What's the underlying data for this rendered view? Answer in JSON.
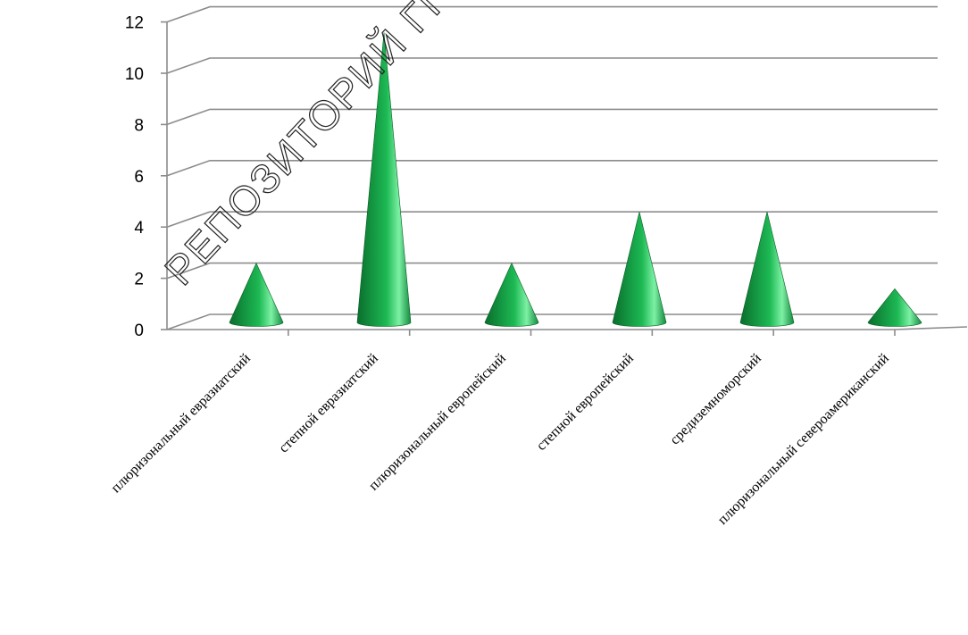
{
  "chart_data": {
    "type": "bar",
    "style": "3d-cone",
    "categories": [
      "плюризональный евразиатский",
      "степной евразиатский",
      "плюризональный европейский",
      "степной европейский",
      "средиземноморский",
      "плюризональный североамериканский"
    ],
    "values": [
      2,
      11,
      2,
      4,
      4,
      1
    ],
    "ylim": [
      0,
      12
    ],
    "yticks": [
      "0",
      "2",
      "4",
      "6",
      "8",
      "10",
      "12"
    ],
    "grid": true,
    "legend": "none",
    "colors": {
      "cone_dark": "#0a6e2c",
      "cone_mid": "#1db954",
      "cone_light": "#7df0a4",
      "grid": "#8c8c8c"
    }
  },
  "watermark": "РЕПОЗИТОРИЙ ГГ"
}
